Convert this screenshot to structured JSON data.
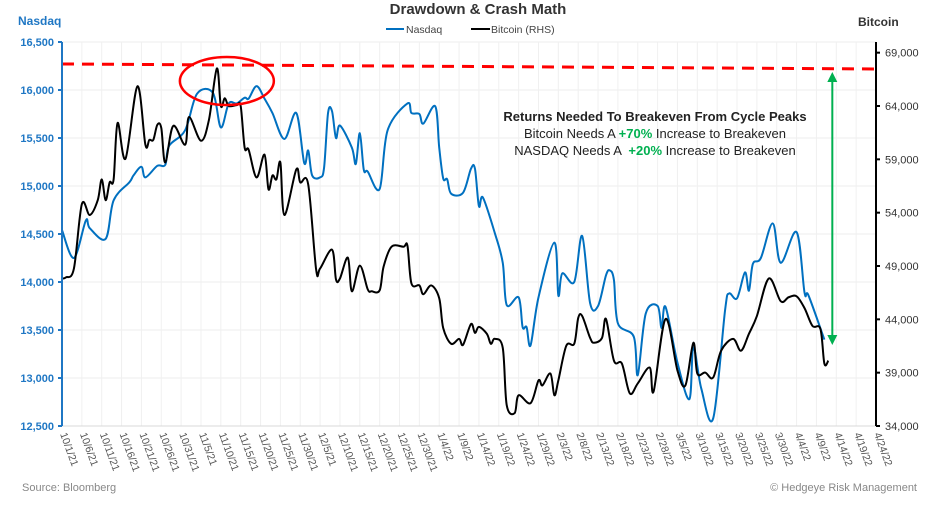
{
  "chart_data": {
    "type": "line",
    "title": "Drawdown & Crash Math",
    "left_axis_title": "Nasdaq",
    "right_axis_title": "Bitcoin",
    "source": "Source: Bloomberg",
    "copyright": "© Hedgeye Risk Management",
    "left_ylim": [
      12500,
      16500
    ],
    "left_ticks": [
      "12,500",
      "13,000",
      "13,500",
      "14,000",
      "14,500",
      "15,000",
      "15,500",
      "16,000",
      "16,500"
    ],
    "right_ylim": [
      34000,
      70000
    ],
    "right_ticks": [
      "34,000",
      "39,000",
      "44,000",
      "49,000",
      "54,000",
      "59,000",
      "64,000",
      "69,000"
    ],
    "xlim": [
      "2021-10-01",
      "2022-04-24"
    ],
    "x_ticks": [
      "10/1/21",
      "10/6/21",
      "10/11/21",
      "10/16/21",
      "10/21/21",
      "10/26/21",
      "10/31/21",
      "11/5/21",
      "11/10/21",
      "11/15/21",
      "11/20/21",
      "11/25/21",
      "11/30/21",
      "12/5/21",
      "12/10/21",
      "12/15/21",
      "12/20/21",
      "12/25/21",
      "12/30/21",
      "1/4/22",
      "1/9/22",
      "1/14/22",
      "1/19/22",
      "1/24/22",
      "1/29/22",
      "2/3/22",
      "2/8/22",
      "2/13/22",
      "2/18/22",
      "2/23/22",
      "2/28/22",
      "3/5/22",
      "3/10/22",
      "3/15/22",
      "3/20/22",
      "3/25/22",
      "3/30/22",
      "4/4/22",
      "4/9/22",
      "4/14/22",
      "4/19/22",
      "4/24/22"
    ],
    "grid": true,
    "legend_position": "top-center",
    "series": [
      {
        "name": "Nasdaq",
        "axis": "left",
        "color": "#0070C0",
        "points": [
          [
            "2021-10-01",
            14540
          ],
          [
            "2021-10-04",
            14250
          ],
          [
            "2021-10-07",
            14640
          ],
          [
            "2021-10-08",
            14560
          ],
          [
            "2021-10-12",
            14450
          ],
          [
            "2021-10-14",
            14850
          ],
          [
            "2021-10-18",
            15040
          ],
          [
            "2021-10-19",
            15110
          ],
          [
            "2021-10-21",
            15200
          ],
          [
            "2021-10-22",
            15090
          ],
          [
            "2021-10-25",
            15210
          ],
          [
            "2021-10-27",
            15220
          ],
          [
            "2021-10-28",
            15420
          ],
          [
            "2021-11-01",
            15580
          ],
          [
            "2021-11-04",
            15960
          ],
          [
            "2021-11-08",
            15970
          ],
          [
            "2021-11-10",
            15610
          ],
          [
            "2021-11-12",
            15860
          ],
          [
            "2021-11-14",
            15860
          ],
          [
            "2021-11-16",
            15920
          ],
          [
            "2021-11-17",
            15910
          ],
          [
            "2021-11-19",
            16040
          ],
          [
            "2021-11-21",
            15910
          ],
          [
            "2021-11-23",
            15760
          ],
          [
            "2021-11-26",
            15490
          ],
          [
            "2021-11-29",
            15760
          ],
          [
            "2021-12-01",
            15240
          ],
          [
            "2021-12-02",
            15370
          ],
          [
            "2021-12-03",
            15110
          ],
          [
            "2021-12-05",
            15090
          ],
          [
            "2021-12-06",
            15190
          ],
          [
            "2021-12-07",
            15760
          ],
          [
            "2021-12-08",
            15780
          ],
          [
            "2021-12-09",
            15500
          ],
          [
            "2021-12-10",
            15630
          ],
          [
            "2021-12-13",
            15400
          ],
          [
            "2021-12-14",
            15230
          ],
          [
            "2021-12-15",
            15550
          ],
          [
            "2021-12-16",
            15170
          ],
          [
            "2021-12-17",
            15150
          ],
          [
            "2021-12-20",
            14970
          ],
          [
            "2021-12-22",
            15580
          ],
          [
            "2021-12-27",
            15860
          ],
          [
            "2021-12-28",
            15760
          ],
          [
            "2021-12-30",
            15750
          ],
          [
            "2021-12-31",
            15650
          ],
          [
            "2022-01-03",
            15830
          ],
          [
            "2022-01-04",
            15400
          ],
          [
            "2022-01-05",
            15080
          ],
          [
            "2022-01-06",
            15070
          ],
          [
            "2022-01-07",
            14920
          ],
          [
            "2022-01-10",
            14930
          ],
          [
            "2022-01-12",
            15180
          ],
          [
            "2022-01-13",
            15180
          ],
          [
            "2022-01-14",
            14790
          ],
          [
            "2022-01-15",
            14880
          ],
          [
            "2022-01-18",
            14510
          ],
          [
            "2022-01-20",
            14200
          ],
          [
            "2022-01-21",
            13760
          ],
          [
            "2022-01-24",
            13840
          ],
          [
            "2022-01-25",
            13530
          ],
          [
            "2022-01-26",
            13530
          ],
          [
            "2022-01-27",
            13340
          ],
          [
            "2022-01-29",
            13840
          ],
          [
            "2022-02-02",
            14410
          ],
          [
            "2022-02-03",
            13860
          ],
          [
            "2022-02-04",
            14090
          ],
          [
            "2022-02-07",
            14000
          ],
          [
            "2022-02-09",
            14480
          ],
          [
            "2022-02-11",
            13780
          ],
          [
            "2022-02-13",
            13750
          ],
          [
            "2022-02-15",
            14070
          ],
          [
            "2022-02-16",
            14120
          ],
          [
            "2022-02-17",
            14020
          ],
          [
            "2022-02-18",
            13570
          ],
          [
            "2022-02-22",
            13430
          ],
          [
            "2022-02-23",
            13030
          ],
          [
            "2022-02-25",
            13670
          ],
          [
            "2022-02-28",
            13750
          ],
          [
            "2022-03-01",
            13520
          ],
          [
            "2022-03-02",
            13740
          ],
          [
            "2022-03-05",
            13160
          ],
          [
            "2022-03-08",
            12780
          ],
          [
            "2022-03-09",
            13320
          ],
          [
            "2022-03-11",
            12890
          ],
          [
            "2022-03-14",
            12580
          ],
          [
            "2022-03-17",
            13710
          ],
          [
            "2022-03-18",
            13880
          ],
          [
            "2022-03-20",
            13830
          ],
          [
            "2022-03-22",
            14100
          ],
          [
            "2022-03-23",
            13910
          ],
          [
            "2022-03-24",
            14190
          ],
          [
            "2022-03-26",
            14250
          ],
          [
            "2022-03-29",
            14610
          ],
          [
            "2022-03-31",
            14200
          ],
          [
            "2022-04-04",
            14520
          ],
          [
            "2022-04-06",
            13890
          ],
          [
            "2022-04-07",
            13860
          ],
          [
            "2022-04-11",
            13400
          ]
        ]
      },
      {
        "name": "Bitcoin (RHS)",
        "axis": "right",
        "color": "#000000",
        "points": [
          [
            "2021-10-01",
            47830
          ],
          [
            "2021-10-02",
            47930
          ],
          [
            "2021-10-04",
            48760
          ],
          [
            "2021-10-06",
            54800
          ],
          [
            "2021-10-08",
            53780
          ],
          [
            "2021-10-10",
            55170
          ],
          [
            "2021-10-11",
            57120
          ],
          [
            "2021-10-12",
            55170
          ],
          [
            "2021-10-13",
            56840
          ],
          [
            "2021-10-14",
            57120
          ],
          [
            "2021-10-15",
            62410
          ],
          [
            "2021-10-17",
            59070
          ],
          [
            "2021-10-20",
            65850
          ],
          [
            "2021-10-22",
            60370
          ],
          [
            "2021-10-23",
            60830
          ],
          [
            "2021-10-24",
            60830
          ],
          [
            "2021-10-25",
            62230
          ],
          [
            "2021-10-26",
            61950
          ],
          [
            "2021-10-27",
            58700
          ],
          [
            "2021-10-29",
            62130
          ],
          [
            "2021-11-01",
            60370
          ],
          [
            "2021-11-02",
            62970
          ],
          [
            "2021-11-05",
            60740
          ],
          [
            "2021-11-07",
            62690
          ],
          [
            "2021-11-09",
            67520
          ],
          [
            "2021-11-10",
            64000
          ],
          [
            "2021-11-11",
            64730
          ],
          [
            "2021-11-12",
            64000
          ],
          [
            "2021-11-14",
            64080
          ],
          [
            "2021-11-15",
            64000
          ],
          [
            "2021-11-16",
            60090
          ],
          [
            "2021-11-17",
            59900
          ],
          [
            "2021-11-19",
            57300
          ],
          [
            "2021-11-21",
            59440
          ],
          [
            "2021-11-22",
            56190
          ],
          [
            "2021-11-23",
            57490
          ],
          [
            "2021-11-24",
            57120
          ],
          [
            "2021-11-25",
            58700
          ],
          [
            "2021-11-26",
            53780
          ],
          [
            "2021-11-29",
            58050
          ],
          [
            "2021-11-30",
            56840
          ],
          [
            "2021-12-02",
            56660
          ],
          [
            "2021-12-04",
            48670
          ],
          [
            "2021-12-05",
            48760
          ],
          [
            "2021-12-08",
            50530
          ],
          [
            "2021-12-09",
            47740
          ],
          [
            "2021-12-10",
            47830
          ],
          [
            "2021-12-12",
            49780
          ],
          [
            "2021-12-13",
            46630
          ],
          [
            "2021-12-15",
            49040
          ],
          [
            "2021-12-17",
            46810
          ],
          [
            "2021-12-18",
            46630
          ],
          [
            "2021-12-20",
            46720
          ],
          [
            "2021-12-21",
            48950
          ],
          [
            "2021-12-23",
            50810
          ],
          [
            "2021-12-26",
            50810
          ],
          [
            "2021-12-27",
            50900
          ],
          [
            "2021-12-28",
            47370
          ],
          [
            "2021-12-30",
            47180
          ],
          [
            "2021-12-31",
            46350
          ],
          [
            "2022-01-02",
            47180
          ],
          [
            "2022-01-04",
            45980
          ],
          [
            "2022-01-05",
            43190
          ],
          [
            "2022-01-07",
            41710
          ],
          [
            "2022-01-09",
            42170
          ],
          [
            "2022-01-10",
            41610
          ],
          [
            "2022-01-12",
            43560
          ],
          [
            "2022-01-13",
            42730
          ],
          [
            "2022-01-14",
            43290
          ],
          [
            "2022-01-16",
            42640
          ],
          [
            "2022-01-17",
            41710
          ],
          [
            "2022-01-18",
            42170
          ],
          [
            "2022-01-20",
            41330
          ],
          [
            "2022-01-21",
            35950
          ],
          [
            "2022-01-23",
            35210
          ],
          [
            "2022-01-24",
            36880
          ],
          [
            "2022-01-27",
            36140
          ],
          [
            "2022-01-29",
            38270
          ],
          [
            "2022-01-30",
            37810
          ],
          [
            "2022-02-01",
            38920
          ],
          [
            "2022-02-02",
            36880
          ],
          [
            "2022-02-03",
            38270
          ],
          [
            "2022-02-05",
            41520
          ],
          [
            "2022-02-07",
            41710
          ],
          [
            "2022-02-08",
            44120
          ],
          [
            "2022-02-09",
            44310
          ],
          [
            "2022-02-11",
            42260
          ],
          [
            "2022-02-12",
            41800
          ],
          [
            "2022-02-14",
            42260
          ],
          [
            "2022-02-15",
            44030
          ],
          [
            "2022-02-17",
            40130
          ],
          [
            "2022-02-19",
            39850
          ],
          [
            "2022-02-21",
            37060
          ],
          [
            "2022-02-23",
            37990
          ],
          [
            "2022-02-26",
            39480
          ],
          [
            "2022-02-27",
            37250
          ],
          [
            "2022-03-02",
            44030
          ],
          [
            "2022-03-05",
            39200
          ],
          [
            "2022-03-07",
            37810
          ],
          [
            "2022-03-09",
            41800
          ],
          [
            "2022-03-10",
            38920
          ],
          [
            "2022-03-12",
            39010
          ],
          [
            "2022-03-14",
            38550
          ],
          [
            "2022-03-16",
            41060
          ],
          [
            "2022-03-19",
            42170
          ],
          [
            "2022-03-21",
            41060
          ],
          [
            "2022-03-23",
            42640
          ],
          [
            "2022-03-25",
            44310
          ],
          [
            "2022-03-28",
            47830
          ],
          [
            "2022-03-31",
            45700
          ],
          [
            "2022-04-02",
            46070
          ],
          [
            "2022-04-04",
            46160
          ],
          [
            "2022-04-06",
            45050
          ],
          [
            "2022-04-08",
            43380
          ],
          [
            "2022-04-10",
            43100
          ],
          [
            "2022-04-11",
            39850
          ],
          [
            "2022-04-12",
            40130
          ]
        ]
      }
    ],
    "annotations": {
      "peak_line": {
        "color": "#FF0000",
        "axis": "right",
        "start": [
          "2021-10-01",
          67940
        ],
        "end": [
          "2022-04-24",
          67470
        ],
        "style": "dashed"
      },
      "peak_circle": {
        "color": "#FF0000",
        "center_date": "2021-11-09"
      },
      "breakeven_arrow": {
        "color": "#00B050",
        "date": "2022-04-13",
        "from": 41590,
        "to": 67190
      },
      "text": {
        "heading": "Returns Needed To Breakeven From Cycle Peaks",
        "bitcoin_prefix": "Bitcoin Needs A ",
        "bitcoin_pct": "+70%",
        "bitcoin_suffix": " Increase to Breakeven",
        "nasdaq_prefix": "NASDAQ Needs A  ",
        "nasdaq_pct": "+20%",
        "nasdaq_suffix": " Increase to Breakeven",
        "highlight_color": "#00B050"
      }
    }
  }
}
